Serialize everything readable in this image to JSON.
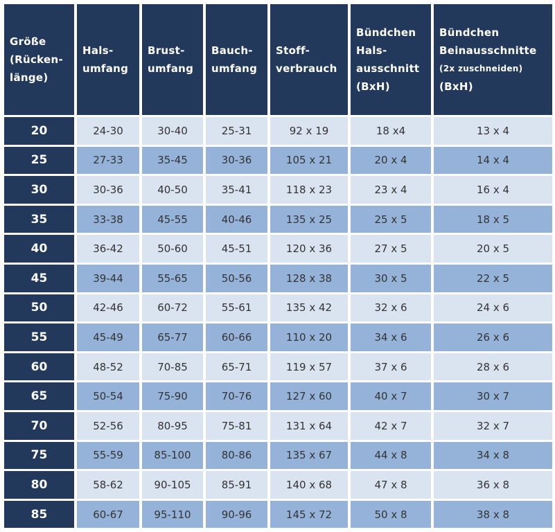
{
  "table": {
    "header": [
      [
        "Größe",
        "(Rücken-",
        "länge)"
      ],
      [
        "Hals-",
        "umfang"
      ],
      [
        "Brust-",
        "umfang"
      ],
      [
        "Bauch-",
        "umfang"
      ],
      [
        "Stoff-",
        "verbrauch"
      ],
      [
        "Bündchen",
        "Hals-",
        "ausschnitt",
        "(BxH)"
      ],
      [
        "Bündchen",
        "Beinausschnitte",
        "(2x zuschneiden)",
        "(BxH)"
      ]
    ],
    "rows": [
      [
        "20",
        "24-30",
        "30-40",
        "25-31",
        "92 x 19",
        "18 x4",
        "13 x 4"
      ],
      [
        "25",
        "27-33",
        "35-45",
        "30-36",
        "105 x 21",
        "20 x 4",
        "14 x 4"
      ],
      [
        "30",
        "30-36",
        "40-50",
        "35-41",
        "118 x 23",
        "23 x 4",
        "16 x 4"
      ],
      [
        "35",
        "33-38",
        "45-55",
        "40-46",
        "135 x 25",
        "25 x 5",
        "18 x 5"
      ],
      [
        "40",
        "36-42",
        "50-60",
        "45-51",
        "120 x 36",
        "27 x 5",
        "20 x 5"
      ],
      [
        "45",
        "39-44",
        "55-65",
        "50-56",
        "128 x 38",
        "30 x 5",
        "22 x 5"
      ],
      [
        "50",
        "42-46",
        "60-72",
        "55-61",
        "135 x 42",
        "32 x 6",
        "24 x 6"
      ],
      [
        "55",
        "45-49",
        "65-77",
        "60-66",
        "110 x 20",
        "34 x 6",
        "26 x 6"
      ],
      [
        "60",
        "48-52",
        "70-85",
        "65-71",
        "119 x 57",
        "37 x 6",
        "28 x 6"
      ],
      [
        "65",
        "50-54",
        "75-90",
        "70-76",
        "127 x 60",
        "40 x 7",
        "30 x 7"
      ],
      [
        "70",
        "52-56",
        "80-95",
        "75-81",
        "131 x 64",
        "42 x 7",
        "32 x 7"
      ],
      [
        "75",
        "55-59",
        "85-100",
        "80-86",
        "135 x 67",
        "44 x 8",
        "34 x 8"
      ],
      [
        "80",
        "58-62",
        "90-105",
        "85-91",
        "140 x 68",
        "47 x 8",
        "36 x 8"
      ],
      [
        "85",
        "60-67",
        "95-110",
        "90-96",
        "145 x 72",
        "50 x 8",
        "38 x 8"
      ]
    ]
  }
}
